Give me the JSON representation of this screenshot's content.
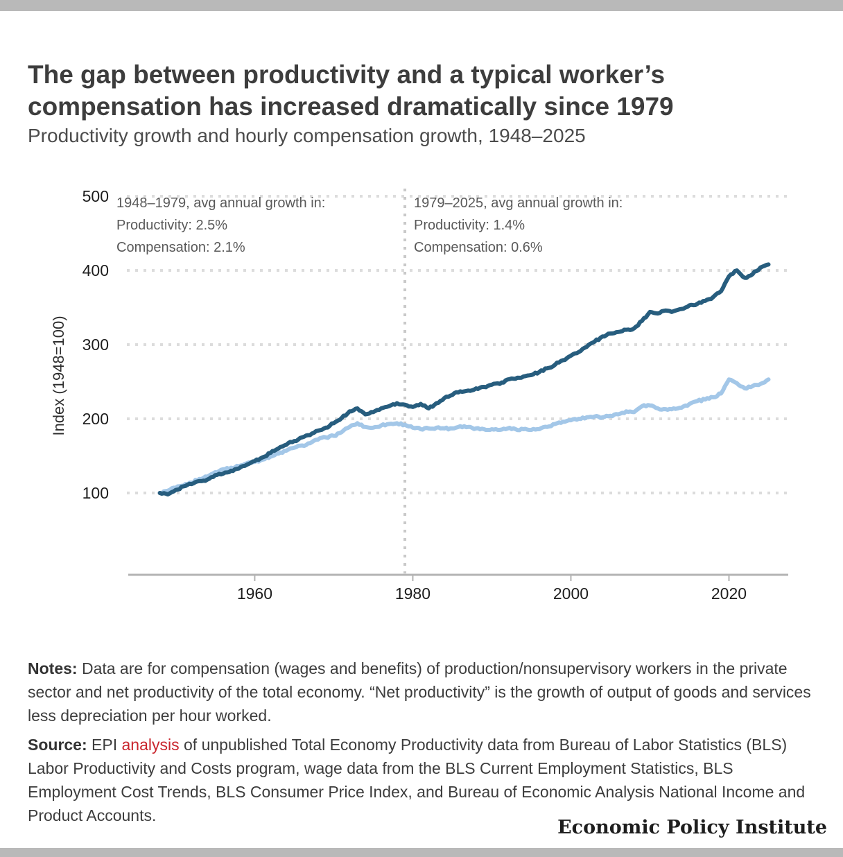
{
  "page": {
    "title": "The gap between productivity and a typical worker’s compensation has increased dramatically since 1979",
    "subtitle": "Productivity growth and hourly compensation growth, 1948–2025"
  },
  "annotations": {
    "left": {
      "lines": [
        "1948–1979, avg annual growth in:",
        "Productivity: 2.5%",
        "Compensation: 2.1%"
      ]
    },
    "right": {
      "lines": [
        "1979–2025, avg annual growth in:",
        "Productivity: 1.4%",
        "Compensation: 0.6%"
      ]
    }
  },
  "notes": {
    "label": "Notes:",
    "text": "Data are for compensation (wages and benefits) of production/nonsupervisory workers in the private sector and net productivity of the total economy. “Net productivity” is the growth of output of goods and services less depreciation per hour worked."
  },
  "source": {
    "label": "Source:",
    "before_link": "EPI",
    "link_text": "analysis",
    "after_link": "of unpublished Total Economy Productivity data from Bureau of Labor Statistics (BLS) Labor Productivity and Costs program, wage data from the BLS Current Employment Statistics, BLS Employment Cost Trends, BLS Consumer Price Index, and Bureau of Economic Analysis National Income and Product Accounts."
  },
  "footer": {
    "brand": "Economic Policy Institute"
  },
  "chart_data": {
    "type": "line",
    "ylabel": "Index (1948=100)",
    "y_ticks": [
      500,
      400,
      300,
      200,
      100
    ],
    "x_ticks": [
      1960,
      1980,
      2000,
      2020
    ],
    "xlim": [
      1944,
      2027.5
    ],
    "ylim": [
      100,
      500
    ],
    "grid": true,
    "legend": "none",
    "reference_line_x": 1979,
    "colors": {
      "productivity": "#275d7e",
      "compensation": "#a3c7e8",
      "grid": "#dcdcdc",
      "reference": "#c9c9c9",
      "axis": "#b3b3b3",
      "link_red": "#c9252d"
    },
    "x": [
      1948,
      1949,
      1950,
      1951,
      1952,
      1953,
      1954,
      1955,
      1956,
      1957,
      1958,
      1959,
      1960,
      1961,
      1962,
      1963,
      1964,
      1965,
      1966,
      1967,
      1968,
      1969,
      1970,
      1971,
      1972,
      1973,
      1974,
      1975,
      1976,
      1977,
      1978,
      1979,
      1980,
      1981,
      1982,
      1983,
      1984,
      1985,
      1986,
      1987,
      1988,
      1989,
      1990,
      1991,
      1992,
      1993,
      1994,
      1995,
      1996,
      1997,
      1998,
      1999,
      2000,
      2001,
      2002,
      2003,
      2004,
      2005,
      2006,
      2007,
      2008,
      2009,
      2010,
      2011,
      2012,
      2013,
      2014,
      2015,
      2016,
      2017,
      2018,
      2019,
      2020,
      2021,
      2022,
      2023,
      2024,
      2025
    ],
    "series": [
      {
        "name": "Productivity",
        "color": "#275d7e",
        "values": [
          100,
          98,
          104,
          109,
          112,
          116,
          118,
          124,
          126,
          130,
          133,
          138,
          143,
          148,
          154,
          160,
          165,
          170,
          175,
          178,
          184,
          188,
          194,
          201,
          210,
          214,
          206,
          209,
          214,
          217,
          221,
          219,
          216,
          220,
          214,
          221,
          228,
          232,
          237,
          238,
          241,
          243,
          246,
          247,
          253,
          254,
          257,
          259,
          263,
          268,
          273,
          279,
          285,
          290,
          297,
          304,
          311,
          315,
          317,
          320,
          322,
          332,
          344,
          342,
          346,
          345,
          348,
          353,
          355,
          359,
          364,
          372,
          392,
          400,
          390,
          395,
          404,
          408
        ]
      },
      {
        "name": "Compensation",
        "color": "#a3c7e8",
        "values": [
          100,
          103,
          107,
          110,
          114,
          119,
          122,
          128,
          132,
          134,
          136,
          140,
          142,
          145,
          149,
          153,
          157,
          161,
          164,
          167,
          172,
          175,
          177,
          182,
          189,
          194,
          189,
          188,
          191,
          193,
          194,
          192,
          188,
          186,
          187,
          188,
          187,
          187,
          190,
          189,
          187,
          186,
          186,
          185,
          187,
          186,
          186,
          185,
          186,
          189,
          193,
          196,
          198,
          200,
          202,
          203,
          202,
          204,
          206,
          210,
          209,
          217,
          218,
          214,
          213,
          214,
          215,
          220,
          224,
          226,
          229,
          234,
          253,
          248,
          241,
          244,
          247,
          253
        ]
      }
    ]
  }
}
